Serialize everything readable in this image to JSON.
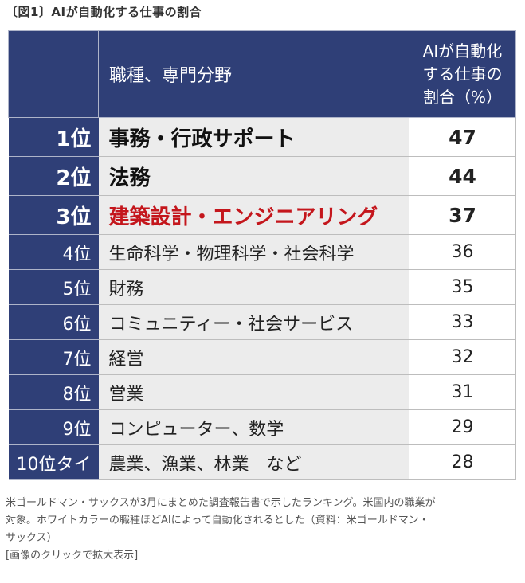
{
  "figure_title": "〔図1〕AIが自動化する仕事の割合",
  "chart_data": {
    "type": "table",
    "columns": [
      "",
      "職種、専門分野",
      [
        "AIが自動化",
        "する仕事の",
        "割合（%）"
      ]
    ],
    "rows": [
      {
        "rank": "1位",
        "field": "事務・行政サポート",
        "value": 47
      },
      {
        "rank": "2位",
        "field": "法務",
        "value": 44
      },
      {
        "rank": "3位",
        "field": "建築設計・エンジニアリング",
        "value": 37
      },
      {
        "rank": "4位",
        "field": "生命科学・物理科学・社会科学",
        "value": 36
      },
      {
        "rank": "5位",
        "field": "財務",
        "value": 35
      },
      {
        "rank": "6位",
        "field": "コミュニティー・社会サービス",
        "value": 33
      },
      {
        "rank": "7位",
        "field": "経営",
        "value": 32
      },
      {
        "rank": "8位",
        "field": "営業",
        "value": 31
      },
      {
        "rank": "9位",
        "field": "コンピューター、数学",
        "value": 29
      },
      {
        "rank": "10位タイ",
        "field": "農業、漁業、林業　など",
        "value": 28
      }
    ]
  },
  "colors": {
    "header_bg": "#2f3f77",
    "highlight_text": "#c4161c",
    "row_bg": "#ececec"
  },
  "caption_lines": [
    "米ゴールドマン・サックスが3月にまとめた調査報告書で示したランキング。米国内の職業が",
    "対象。ホワイトカラーの職種ほどAIによって自動化されるとした（資料：米ゴールドマン・",
    "サックス）"
  ],
  "link_text": "[画像のクリックで拡大表示]"
}
